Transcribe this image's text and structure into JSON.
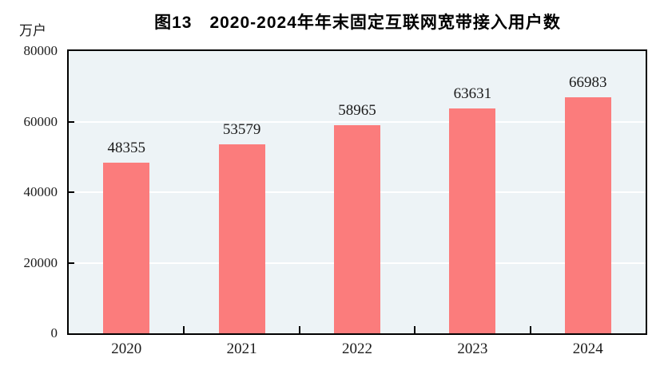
{
  "title": "图13　2020-2024年年末固定互联网宽带接入用户数",
  "unit_label": "万户",
  "chart_data": {
    "type": "bar",
    "title": "图13　2020-2024年年末固定互联网宽带接入用户数",
    "categories": [
      "2020",
      "2021",
      "2022",
      "2023",
      "2024"
    ],
    "values": [
      48355,
      53579,
      58965,
      63631,
      66983
    ],
    "xlabel": "",
    "ylabel": "万户",
    "ylim": [
      0,
      80000
    ],
    "yticks": [
      0,
      20000,
      40000,
      60000,
      80000
    ],
    "grid": true,
    "legend": "none",
    "bar_color": "#FB7C7C",
    "plot_background": "#EDF3F6",
    "gridline_color": "#FFFFFF",
    "axis_color": "#000000"
  }
}
